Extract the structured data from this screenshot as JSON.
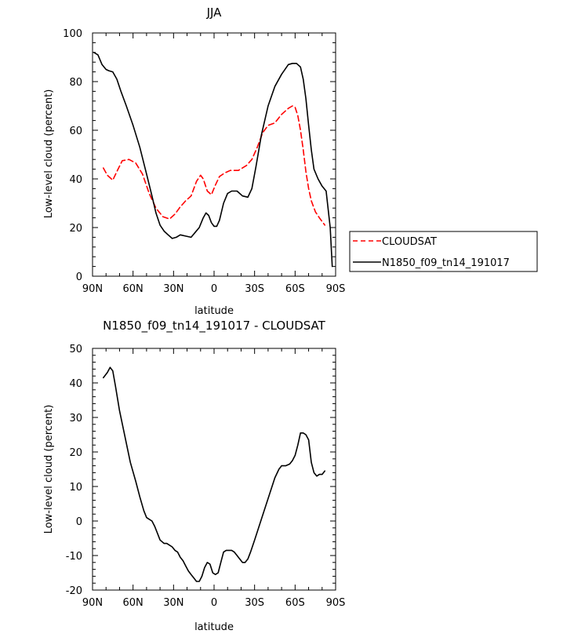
{
  "chart_data": [
    {
      "type": "line",
      "title": "JJA",
      "xlabel": "latitude",
      "ylabel": "Low-level cloud (percent)",
      "xlim": [
        -90,
        90
      ],
      "ylim": [
        0,
        100
      ],
      "x_tick_values": [
        -90,
        -60,
        -30,
        0,
        30,
        60,
        90
      ],
      "x_tick_labels": [
        "90N",
        "60N",
        "30N",
        "0",
        "30S",
        "60S",
        "90S"
      ],
      "y_tick_values": [
        0,
        20,
        40,
        60,
        80,
        100
      ],
      "y_tick_labels": [
        "0",
        "20",
        "40",
        "60",
        "80",
        "100"
      ],
      "legend_position": "right",
      "series": [
        {
          "name": "CLOUDSAT",
          "color": "#ff0000",
          "dash": "dashed",
          "x": [
            -82,
            -79,
            -75,
            -72,
            -68,
            -63,
            -58,
            -53,
            -48,
            -43,
            -38,
            -33,
            -29,
            -25,
            -21,
            -17,
            -13,
            -10,
            -8,
            -5,
            -2,
            1,
            4,
            8,
            12,
            18,
            24,
            28,
            32,
            36,
            40,
            45,
            50,
            55,
            58,
            60,
            62,
            64,
            66,
            68,
            70,
            72,
            75,
            78,
            82
          ],
          "values": [
            44.5,
            41.5,
            39.5,
            43,
            47.5,
            48,
            46.5,
            42,
            34,
            28,
            24.5,
            23.5,
            25.5,
            28.5,
            31,
            33,
            39,
            41.5,
            40,
            35,
            33.5,
            37.5,
            41,
            42.5,
            43.5,
            43.5,
            45.5,
            48,
            53,
            59,
            62,
            63,
            66.5,
            69,
            70,
            69.5,
            66,
            60,
            52,
            43,
            36,
            31,
            26.5,
            24,
            21
          ]
        },
        {
          "name": "N1850_f09_tn14_191017",
          "color": "#000000",
          "dash": "solid",
          "x": [
            -89,
            -86,
            -83,
            -80,
            -78,
            -75,
            -72,
            -69,
            -65,
            -60,
            -55,
            -50,
            -46,
            -43,
            -40,
            -37,
            -34,
            -31,
            -28,
            -25,
            -21,
            -17,
            -14,
            -11,
            -8,
            -6,
            -4,
            -2,
            0,
            2,
            4,
            7,
            10,
            13,
            17,
            21,
            25,
            28,
            31,
            35,
            40,
            45,
            50,
            55,
            58,
            61,
            64,
            66,
            68,
            70,
            72,
            74,
            77,
            80,
            83,
            86,
            87.5
          ],
          "values": [
            92,
            91,
            87,
            85,
            84.5,
            84,
            81,
            76,
            70,
            62,
            53,
            42,
            33,
            26,
            21,
            18.5,
            17,
            15.5,
            16,
            17,
            16.5,
            16,
            18,
            20,
            24,
            26,
            25,
            22,
            20.5,
            20.5,
            23,
            30,
            34,
            35,
            35,
            33,
            32.5,
            36,
            45,
            58,
            70,
            78,
            83,
            87,
            87.5,
            87.5,
            86,
            81,
            73,
            62,
            52,
            44,
            40,
            37,
            35,
            20,
            4
          ]
        }
      ]
    },
    {
      "type": "line",
      "title": "N1850_f09_tn14_191017 - CLOUDSAT",
      "xlabel": "latitude",
      "ylabel": "Low-level cloud (percent)",
      "xlim": [
        -90,
        90
      ],
      "ylim": [
        -20,
        50
      ],
      "x_tick_values": [
        -90,
        -60,
        -30,
        0,
        30,
        60,
        90
      ],
      "x_tick_labels": [
        "90N",
        "60N",
        "30N",
        "0",
        "30S",
        "60S",
        "90S"
      ],
      "y_tick_values": [
        -20,
        -10,
        0,
        10,
        20,
        30,
        40,
        50
      ],
      "y_tick_labels": [
        "-20",
        "-10",
        "0",
        "10",
        "20",
        "30",
        "40",
        "50"
      ],
      "series": [
        {
          "color": "#000000",
          "dash": "solid",
          "x": [
            -82,
            -79,
            -77,
            -75,
            -73,
            -70,
            -66,
            -62,
            -58,
            -55,
            -52,
            -50,
            -48,
            -46,
            -44,
            -42,
            -40,
            -37,
            -35,
            -33,
            -31,
            -29,
            -27,
            -25,
            -23,
            -21,
            -19,
            -17,
            -15,
            -13,
            -11,
            -9,
            -7,
            -5,
            -3,
            -1,
            1,
            3,
            5,
            7,
            9,
            11,
            13,
            15,
            17,
            19,
            21,
            23,
            25,
            27,
            30,
            35,
            40,
            45,
            48,
            50,
            53,
            56,
            58,
            60,
            62,
            64,
            66,
            68,
            70,
            72,
            74,
            76,
            78,
            80,
            82
          ],
          "values": [
            41.5,
            43,
            44.5,
            43.5,
            39,
            32,
            24.5,
            17,
            11.5,
            7,
            3,
            1,
            0.5,
            0,
            -1.5,
            -3.5,
            -5.5,
            -6.5,
            -6.5,
            -7,
            -7.5,
            -8.5,
            -9,
            -10.5,
            -11.5,
            -13,
            -14.5,
            -15.5,
            -16.5,
            -17.5,
            -17.5,
            -16,
            -13.5,
            -12,
            -12.5,
            -15,
            -15.5,
            -15,
            -12,
            -9,
            -8.5,
            -8.5,
            -8.5,
            -9,
            -10,
            -11,
            -12,
            -12,
            -11,
            -9,
            -5.5,
            0.5,
            6.5,
            12.5,
            15,
            16,
            16,
            16.5,
            17.5,
            19,
            22,
            25.5,
            25.5,
            25,
            23.5,
            17,
            14,
            13,
            13.5,
            13.5,
            14.5
          ]
        }
      ]
    }
  ]
}
